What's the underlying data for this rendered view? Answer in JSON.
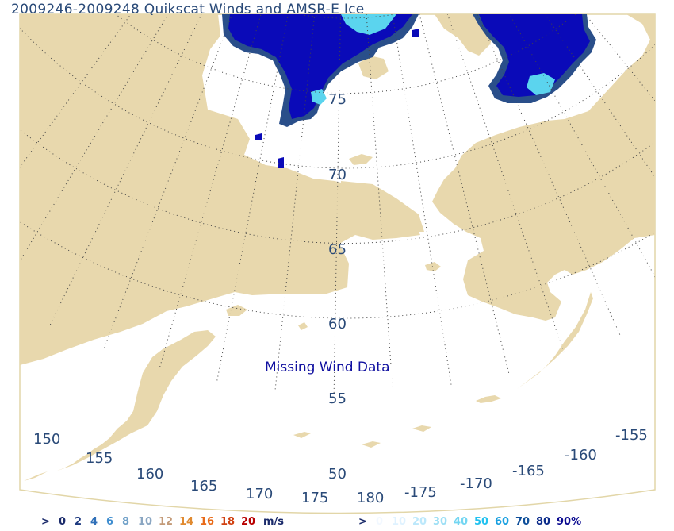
{
  "title": "2009246-2009248 Quikscat Winds and AMSR-E Ice",
  "annotation": "Missing Wind Data",
  "colors": {
    "land": "#e8d8ad",
    "ocean": "#ffffff",
    "grid": "#444444",
    "label": "#2a4a78",
    "ice_dark": "#0a0ab8",
    "ice_edge": "#2a4f8a",
    "ice_light": "#5bd4ee"
  },
  "latitude_labels": [
    "75",
    "70",
    "65",
    "60",
    "55",
    "50"
  ],
  "longitude_labels": [
    "150",
    "155",
    "160",
    "165",
    "170",
    "175",
    "180",
    "-175",
    "-170",
    "-165",
    "-160",
    "-155"
  ],
  "wind_legend": {
    "prefix": ">",
    "items": [
      {
        "label": "0",
        "color": "#1a2a6a"
      },
      {
        "label": "2",
        "color": "#1f3b80"
      },
      {
        "label": "4",
        "color": "#3070b8"
      },
      {
        "label": "6",
        "color": "#3f8ed0"
      },
      {
        "label": "8",
        "color": "#6fa0c8"
      },
      {
        "label": "10",
        "color": "#8aa6c2"
      },
      {
        "label": "12",
        "color": "#c39a78"
      },
      {
        "label": "14",
        "color": "#e08a30"
      },
      {
        "label": "16",
        "color": "#e86a18"
      },
      {
        "label": "18",
        "color": "#d04010"
      },
      {
        "label": "20",
        "color": "#b80000"
      }
    ],
    "unit": "m/s"
  },
  "ice_legend": {
    "prefix": ">",
    "items": [
      {
        "label": "0",
        "color": "#f2f8ff"
      },
      {
        "label": "10",
        "color": "#dff2ff"
      },
      {
        "label": "20",
        "color": "#bce8fb"
      },
      {
        "label": "30",
        "color": "#9ddff5"
      },
      {
        "label": "40",
        "color": "#73d6f2"
      },
      {
        "label": "50",
        "color": "#22c2f0"
      },
      {
        "label": "60",
        "color": "#1aa0e0"
      },
      {
        "label": "70",
        "color": "#0f4f9a"
      },
      {
        "label": "80",
        "color": "#0a2a8a"
      },
      {
        "label": "90%",
        "color": "#0a0a90"
      }
    ]
  }
}
